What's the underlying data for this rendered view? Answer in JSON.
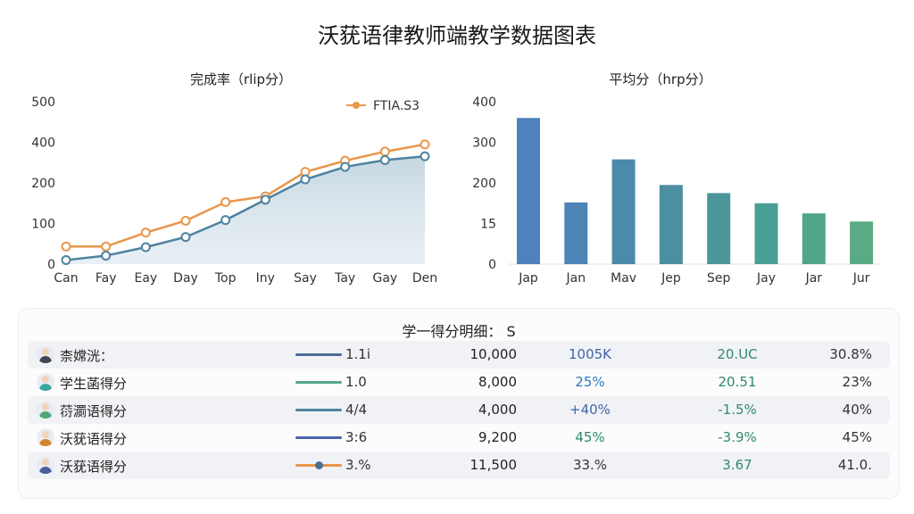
{
  "page_title": "沃莸语律教师端教学数据图表",
  "chart_data": [
    {
      "type": "line",
      "title": "完成率（rlip分）",
      "x": [
        "Can",
        "Fay",
        "Eay",
        "Day",
        "Top",
        "Iny",
        "Say",
        "Tay",
        "Gay",
        "Den"
      ],
      "y_ticks": [
        "0",
        "100",
        "200",
        "400",
        "500"
      ],
      "legend": "FTIA.S3",
      "legend_position": "top-right",
      "series": [
        {
          "name": "FTIA.S3",
          "color": "#e8964a",
          "values": [
            52,
            52,
            93,
            128,
            183,
            200,
            272,
            305,
            332,
            353
          ]
        },
        {
          "color": "#4d82a0",
          "values": [
            12,
            25,
            50,
            80,
            130,
            190,
            250,
            287,
            307,
            318
          ]
        }
      ],
      "ylim": [
        0,
        400
      ],
      "grid": false
    },
    {
      "type": "bar",
      "title": "平均分（hrp分）",
      "categories": [
        "Jap",
        "Jan",
        "Mav",
        "Jep",
        "Sep",
        "Jay",
        "Jar",
        "Jur"
      ],
      "y_ticks": [
        "0",
        "15",
        "200",
        "300",
        "400"
      ],
      "values": [
        360,
        152,
        258,
        195,
        175,
        150,
        125,
        105
      ],
      "colors": [
        "#4d82bf",
        "#4d84b5",
        "#4b8aa9",
        "#4b8fa0",
        "#4b979c",
        "#4b9e93",
        "#50a58a",
        "#5aab84"
      ],
      "ylim": [
        0,
        400
      ],
      "grid": false
    }
  ],
  "table": {
    "title": "学一得分明细：  S",
    "rows": [
      {
        "name": "柰嫦洸：",
        "avatar_color": "#3f4656",
        "line_color": "#4d6d96",
        "dot": false,
        "c1": "1.1i",
        "c2": "10,000",
        "c3": "1005K",
        "c3_color": "#3f67a8",
        "c4": "20.UC",
        "c5": "30.8%"
      },
      {
        "name": "学生菡得分",
        "avatar_color": "#3aa6a0",
        "line_color": "#52a88a",
        "dot": false,
        "c1": "1.0",
        "c2": "8,000",
        "c3": "25%",
        "c3_color": "#2e78b8",
        "c4": "20.51",
        "c5": "23%"
      },
      {
        "name": "葕瀱语得分",
        "avatar_color": "#4fa77a",
        "line_color": "#4d84a0",
        "dot": false,
        "c1": "4/4",
        "c2": "4,000",
        "c3": "+40%",
        "c3_color": "#3f67a8",
        "c4": "-1.5%",
        "c5": "40%"
      },
      {
        "name": "沃莸语得分",
        "avatar_color": "#d4862f",
        "line_color": "#4e63a8",
        "dot": false,
        "c1": "3:6",
        "c2": "9,200",
        "c3": "45%",
        "c3_color": "#2e8a6b",
        "c4": "-3.9%",
        "c5": "45%"
      },
      {
        "name": "沃莸语得分",
        "avatar_color": "#4a5ea0",
        "line_color": "#e8964a",
        "dot": true,
        "dot_color": "#4d6d96",
        "c1": "3.%",
        "c2": "11,500",
        "c3": "33.%",
        "c3_color": "#333333",
        "c4": "3.67",
        "c5": "41.0."
      }
    ]
  }
}
